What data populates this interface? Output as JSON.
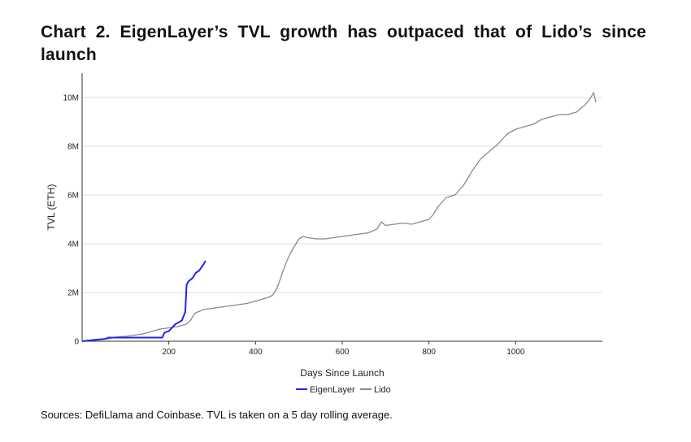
{
  "chart_data": {
    "type": "line",
    "title": "Chart 2. EigenLayer’s TVL growth has outpaced that of Lido’s since launch",
    "xlabel": "Days Since Launch",
    "ylabel": "TVL (ETH)",
    "xlim": [
      0,
      1200
    ],
    "ylim": [
      0,
      11000000
    ],
    "x_ticks": [
      200,
      400,
      600,
      800,
      1000
    ],
    "x_tick_labels": [
      "200",
      "400",
      "600",
      "800",
      "1000"
    ],
    "y_ticks": [
      0,
      2000000,
      4000000,
      6000000,
      8000000,
      10000000
    ],
    "y_tick_labels": [
      "0",
      "2M",
      "4M",
      "6M",
      "8M",
      "10M"
    ],
    "grid": "horizontal",
    "legend_position": "bottom-center",
    "series": [
      {
        "name": "EigenLayer",
        "color": "#2323ee",
        "x": [
          0,
          10,
          30,
          55,
          60,
          100,
          150,
          185,
          190,
          200,
          215,
          230,
          238,
          241,
          245,
          255,
          262,
          270,
          278,
          285
        ],
        "values": [
          0,
          20000,
          60000,
          100000,
          150000,
          150000,
          150000,
          150000,
          350000,
          420000,
          700000,
          850000,
          1200000,
          2300000,
          2450000,
          2600000,
          2800000,
          2900000,
          3100000,
          3300000
        ]
      },
      {
        "name": "Lido",
        "color": "#8a8a8a",
        "x": [
          0,
          20,
          40,
          60,
          80,
          100,
          120,
          140,
          160,
          180,
          200,
          220,
          240,
          250,
          260,
          280,
          300,
          320,
          340,
          360,
          380,
          400,
          420,
          430,
          440,
          450,
          460,
          470,
          480,
          490,
          500,
          510,
          520,
          540,
          560,
          580,
          600,
          620,
          640,
          660,
          680,
          690,
          700,
          720,
          740,
          760,
          780,
          800,
          810,
          820,
          840,
          860,
          880,
          900,
          920,
          940,
          960,
          980,
          1000,
          1020,
          1040,
          1060,
          1080,
          1100,
          1120,
          1140,
          1160,
          1170,
          1180,
          1185
        ],
        "values": [
          0,
          30000,
          60000,
          100000,
          180000,
          200000,
          250000,
          300000,
          400000,
          500000,
          550000,
          600000,
          700000,
          850000,
          1150000,
          1300000,
          1350000,
          1400000,
          1450000,
          1500000,
          1550000,
          1650000,
          1750000,
          1800000,
          1900000,
          2200000,
          2700000,
          3200000,
          3600000,
          3900000,
          4200000,
          4300000,
          4250000,
          4200000,
          4200000,
          4250000,
          4300000,
          4350000,
          4400000,
          4450000,
          4600000,
          4900000,
          4750000,
          4800000,
          4850000,
          4800000,
          4900000,
          5000000,
          5200000,
          5500000,
          5900000,
          6000000,
          6400000,
          7000000,
          7500000,
          7800000,
          8100000,
          8500000,
          8700000,
          8800000,
          8900000,
          9100000,
          9200000,
          9300000,
          9300000,
          9400000,
          9700000,
          9900000,
          10200000,
          9800000
        ]
      }
    ]
  },
  "source_note": "Sources: DefiLlama and Coinbase. TVL is taken on a 5 day rolling average."
}
